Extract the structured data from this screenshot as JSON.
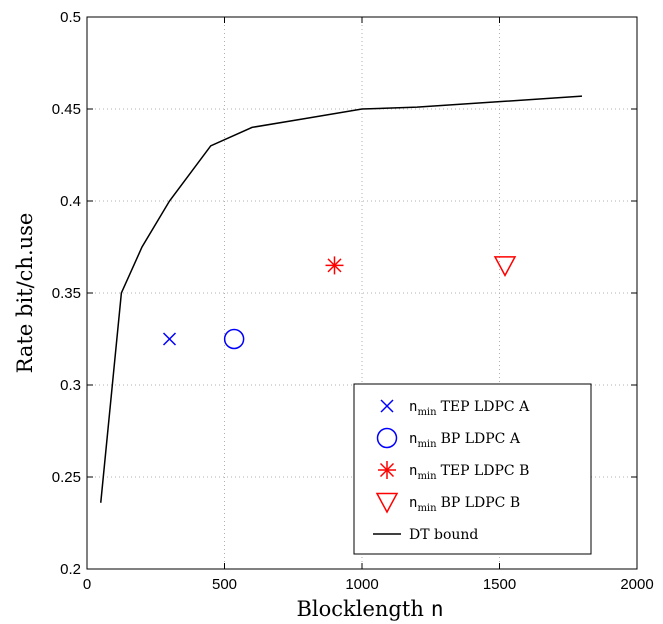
{
  "chart_data": {
    "type": "line",
    "xlabel": "Blocklength",
    "xlabel_var": "n",
    "ylabel": "Rate bit/ch.use",
    "xlim": [
      0,
      2000
    ],
    "ylim": [
      0.2,
      0.5
    ],
    "xticks": [
      0,
      500,
      1000,
      1500,
      2000
    ],
    "yticks": [
      0.2,
      0.25,
      0.3,
      0.35,
      0.4,
      0.45,
      0.5
    ],
    "xtick_labels": [
      "0",
      "500",
      "1000",
      "1500",
      "2000"
    ],
    "ytick_labels": [
      "0.2",
      "0.25",
      "0.3",
      "0.35",
      "0.4",
      "0.45",
      "0.5"
    ],
    "grid": true,
    "legend_position": "bottom-right",
    "series": [
      {
        "name": "TEP LDPC A",
        "name_prefix": "n",
        "name_sub": "min",
        "marker": "x",
        "color": "#0000ff",
        "x": [
          300
        ],
        "y": [
          0.325
        ]
      },
      {
        "name": "BP LDPC A",
        "name_prefix": "n",
        "name_sub": "min",
        "marker": "o",
        "color": "#0000ff",
        "x": [
          535
        ],
        "y": [
          0.325
        ]
      },
      {
        "name": "TEP LDPC B",
        "name_prefix": "n",
        "name_sub": "min",
        "marker": "*",
        "color": "#ff0000",
        "x": [
          900
        ],
        "y": [
          0.365
        ]
      },
      {
        "name": "BP LDPC B",
        "name_prefix": "n",
        "name_sub": "min",
        "marker": "v",
        "color": "#ff0000",
        "x": [
          1520
        ],
        "y": [
          0.365
        ]
      },
      {
        "name": "DT bound",
        "marker": "line",
        "color": "#000000",
        "x": [
          50,
          125,
          200,
          300,
          450,
          600,
          800,
          1000,
          1200,
          1500,
          1800
        ],
        "y": [
          0.236,
          0.35,
          0.375,
          0.4,
          0.43,
          0.44,
          0.445,
          0.45,
          0.451,
          0.454,
          0.457
        ]
      }
    ]
  }
}
